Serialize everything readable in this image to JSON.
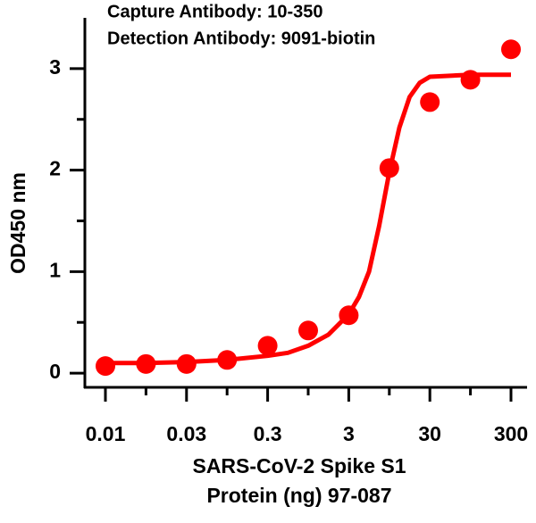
{
  "chart_data": {
    "type": "scatter",
    "title": [
      "Capture Antibody: 10-350",
      "Detection Antibody: 9091-biotin"
    ],
    "x_label": [
      "SARS-CoV-2 Spike S1",
      "Protein (ng) 97-087"
    ],
    "y_label": "OD450 nm",
    "categories": [
      "0.01",
      null,
      "0.03",
      null,
      "0.3",
      null,
      "3",
      null,
      "30",
      null,
      "300"
    ],
    "ylim": [
      -0.14,
      3.5
    ],
    "yticks": [
      0,
      1,
      2,
      3
    ],
    "color": "#ff0000",
    "series": [
      {
        "type": "scatter",
        "values": [
          0.07,
          0.09,
          0.09,
          0.13,
          0.27,
          0.42,
          0.57,
          2.02,
          2.67,
          2.89,
          3.19
        ]
      },
      {
        "type": "line",
        "x": [
          0,
          1,
          2,
          3,
          4,
          4.5,
          5,
          5.5,
          6,
          6.25,
          6.5,
          6.75,
          7,
          7.25,
          7.5,
          7.75,
          8,
          9,
          10
        ],
        "values": [
          0.1,
          0.1,
          0.11,
          0.13,
          0.17,
          0.2,
          0.27,
          0.38,
          0.58,
          0.75,
          1.0,
          1.45,
          1.98,
          2.42,
          2.72,
          2.86,
          2.92,
          2.94,
          2.94
        ]
      }
    ]
  }
}
